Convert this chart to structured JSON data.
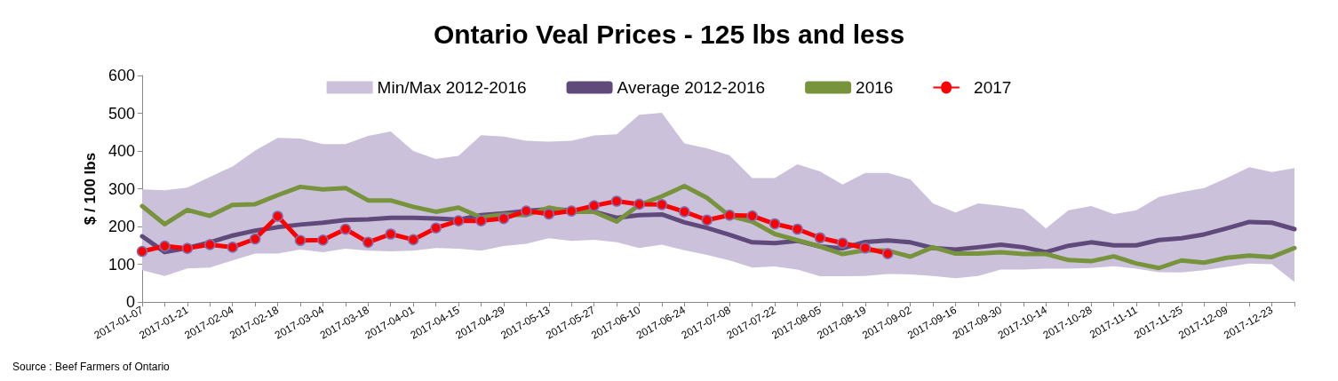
{
  "chart_data": {
    "type": "line",
    "title": "Ontario Veal Prices - 125 lbs and less",
    "ylabel": "$ / 100 lbs",
    "annotations": [
      "Source : Beef Farmers of Ontario"
    ],
    "categories": [
      "2017-01-07",
      null,
      "2017-01-21",
      null,
      "2017-02-04",
      null,
      "2017-02-18",
      null,
      "2017-03-04",
      null,
      "2017-03-18",
      null,
      "2017-04-01",
      null,
      "2017-04-15",
      null,
      "2017-04-29",
      null,
      "2017-05-13",
      null,
      "2017-05-27",
      null,
      "2017-06-10",
      null,
      "2017-06-24",
      null,
      "2017-07-08",
      null,
      "2017-07-22",
      null,
      "2017-08-05",
      null,
      "2017-08-19",
      null,
      "2017-09-02",
      null,
      "2017-09-16",
      null,
      "2017-09-30",
      null,
      "2017-10-14",
      null,
      "2017-10-28",
      null,
      "2017-11-11",
      null,
      "2017-11-25",
      null,
      "2017-12-09",
      null,
      "2017-12-23",
      null
    ],
    "series": [
      {
        "name": "Min/Max 2012-2016",
        "type": "line",
        "color": "#ccc1da",
        "marker": "none",
        "values": [
          null,
          null,
          null,
          null,
          null,
          null,
          null,
          null,
          null,
          null,
          null,
          null,
          null,
          null,
          null,
          null,
          null,
          null,
          null,
          null,
          null,
          null,
          null,
          null,
          null,
          null,
          null,
          null,
          null,
          null,
          null,
          null,
          null,
          null,
          null,
          null,
          null,
          null,
          null,
          null,
          null,
          null,
          null,
          null,
          null,
          null,
          null,
          null,
          null,
          null,
          null,
          null
        ],
        "lower": [
          84,
          69,
          89,
          91,
          110,
          128,
          128,
          139,
          132,
          141,
          136,
          134,
          136,
          143,
          141,
          136,
          148,
          154,
          169,
          162,
          165,
          158,
          143,
          152,
          137,
          125,
          110,
          91,
          94,
          86,
          68,
          68,
          69,
          74,
          73,
          69,
          63,
          69,
          86,
          86,
          88,
          88,
          90,
          95,
          88,
          79,
          78,
          84,
          93,
          102,
          100,
          53
        ],
        "upper": [
          298,
          296,
          303,
          331,
          359,
          401,
          435,
          433,
          418,
          418,
          440,
          452,
          400,
          379,
          387,
          442,
          438,
          427,
          425,
          427,
          441,
          444,
          496,
          501,
          420,
          407,
          388,
          328,
          328,
          365,
          346,
          311,
          342,
          342,
          325,
          261,
          237,
          261,
          255,
          246,
          195,
          243,
          254,
          233,
          243,
          278,
          291,
          302,
          328,
          357,
          344,
          355
        ]
      },
      {
        "name": "Average 2012-2016",
        "color": "#604a7b",
        "marker": "none",
        "values": [
          174,
          132,
          143,
          158,
          176,
          189,
          198,
          205,
          210,
          217,
          219,
          223,
          223,
          221,
          218,
          230,
          235,
          241,
          246,
          243,
          239,
          223,
          230,
          232,
          211,
          196,
          178,
          158,
          156,
          162,
          147,
          142,
          159,
          163,
          158,
          143,
          139,
          145,
          152,
          145,
          132,
          149,
          158,
          150,
          150,
          164,
          169,
          179,
          195,
          212,
          210,
          193
        ]
      },
      {
        "name": "2016",
        "color": "#77933c",
        "marker": "none",
        "values": [
          254,
          206,
          244,
          228,
          257,
          259,
          283,
          305,
          298,
          302,
          269,
          269,
          252,
          239,
          250,
          224,
          232,
          230,
          250,
          239,
          239,
          213,
          257,
          280,
          307,
          276,
          228,
          213,
          180,
          164,
          147,
          127,
          137,
          136,
          120,
          145,
          128,
          128,
          132,
          127,
          127,
          111,
          108,
          121,
          102,
          90,
          110,
          104,
          117,
          123,
          119,
          143
        ]
      },
      {
        "name": "2017",
        "color": "#ff0000",
        "marker": "circle",
        "values": [
          134,
          148,
          142,
          152,
          145,
          167,
          227,
          163,
          164,
          193,
          158,
          180,
          165,
          196,
          215,
          215,
          221,
          241,
          233,
          241,
          255,
          267,
          259,
          258,
          239,
          217,
          230,
          228,
          207,
          193,
          170,
          156,
          143,
          128,
          null,
          null,
          null,
          null,
          null,
          null,
          null,
          null,
          null,
          null,
          null,
          null,
          null,
          null,
          null,
          null,
          null,
          null
        ]
      }
    ],
    "ylim": [
      0,
      600
    ],
    "yticks": [
      0,
      100,
      200,
      300,
      400,
      500,
      600
    ],
    "grid": false,
    "legend": "top",
    "line_style": "solid"
  }
}
